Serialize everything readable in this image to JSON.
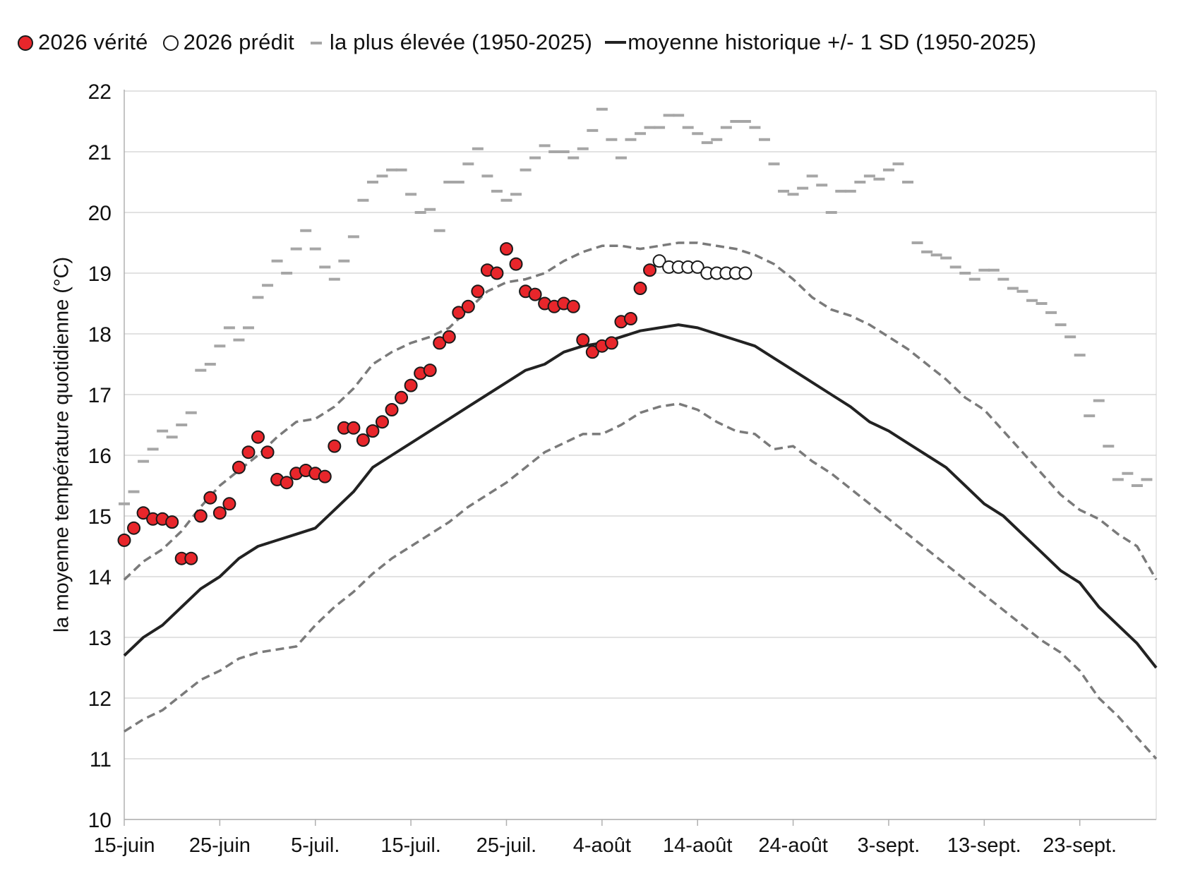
{
  "legend": {
    "truth": "2026 vérité",
    "predicted": "2026 prédit",
    "highest": "la plus élevée (1950-2025)",
    "mean": "moyenne historique +/- 1 SD (1950-2025)"
  },
  "colors": {
    "truth": "#e8262b",
    "predicted": "#ffffff",
    "highest": "#a6a6a6",
    "mean": "#222222",
    "sd": "#7a7a7a",
    "grid": "#d9d9d9"
  },
  "chart_data": {
    "type": "line",
    "ylabel": "la moyenne température quotidienne (°C)",
    "xlabel": "",
    "ylim": [
      10,
      22
    ],
    "yticks": [
      10,
      11,
      12,
      13,
      14,
      15,
      16,
      17,
      18,
      19,
      20,
      21,
      22
    ],
    "x_start": "15-juin",
    "xlim_days": [
      0,
      108
    ],
    "xticks": [
      {
        "day": 0,
        "label": "15-juin"
      },
      {
        "day": 10,
        "label": "25-juin"
      },
      {
        "day": 20,
        "label": "5-juil."
      },
      {
        "day": 30,
        "label": "15-juil."
      },
      {
        "day": 40,
        "label": "25-juil."
      },
      {
        "day": 50,
        "label": "4-août"
      },
      {
        "day": 60,
        "label": "14-août"
      },
      {
        "day": 70,
        "label": "24-août"
      },
      {
        "day": 80,
        "label": "3-sept."
      },
      {
        "day": 90,
        "label": "13-sept."
      },
      {
        "day": 100,
        "label": "23-sept."
      }
    ],
    "grid": true,
    "legend_position": "top",
    "series": [
      {
        "name": "2026 vérité",
        "kind": "scatter",
        "start_day": 0,
        "values": [
          14.6,
          14.8,
          15.05,
          14.95,
          14.95,
          14.9,
          14.3,
          14.3,
          15.0,
          15.3,
          15.05,
          15.2,
          15.8,
          16.05,
          16.3,
          16.05,
          15.6,
          15.55,
          15.7,
          15.75,
          15.7,
          15.65,
          16.15,
          16.45,
          16.45,
          16.25,
          16.4,
          16.55,
          16.75,
          16.95,
          17.15,
          17.35,
          17.4,
          17.85,
          17.95,
          18.35,
          18.45,
          18.7,
          19.05,
          19.0,
          19.4,
          19.15,
          18.7,
          18.65,
          18.5,
          18.45,
          18.5,
          18.45,
          17.9,
          17.7,
          17.8,
          17.85,
          18.2,
          18.25,
          18.75,
          19.05
        ]
      },
      {
        "name": "2026 prédit",
        "kind": "scatter",
        "start_day": 56,
        "values": [
          19.2,
          19.1,
          19.1,
          19.1,
          19.1,
          19.0,
          19.0,
          19.0,
          19.0,
          19.0
        ]
      },
      {
        "name": "la plus élevée (1950-2025)",
        "kind": "dash",
        "start_day": 0,
        "values": [
          15.2,
          15.4,
          15.9,
          16.1,
          16.4,
          16.3,
          16.5,
          16.7,
          17.4,
          17.5,
          17.8,
          18.1,
          17.9,
          18.1,
          18.6,
          18.8,
          19.2,
          19.0,
          19.4,
          19.7,
          19.4,
          19.1,
          18.9,
          19.2,
          19.6,
          20.2,
          20.5,
          20.6,
          20.7,
          20.7,
          20.3,
          20.0,
          20.05,
          19.7,
          20.5,
          20.5,
          20.8,
          21.05,
          20.6,
          20.35,
          20.2,
          20.3,
          20.7,
          20.9,
          21.1,
          21.0,
          21.0,
          20.9,
          21.05,
          21.35,
          21.7,
          21.2,
          20.9,
          21.2,
          21.3,
          21.4,
          21.4,
          21.6,
          21.6,
          21.4,
          21.3,
          21.15,
          21.2,
          21.4,
          21.5,
          21.5,
          21.4,
          21.2,
          20.8,
          20.35,
          20.3,
          20.4,
          20.6,
          20.45,
          20.0,
          20.35,
          20.35,
          20.5,
          20.6,
          20.55,
          20.7,
          20.8,
          20.5,
          19.5,
          19.35,
          19.3,
          19.25,
          19.1,
          19.0,
          18.9,
          19.05,
          19.05,
          18.9,
          18.75,
          18.7,
          18.55,
          18.5,
          18.35,
          18.15,
          17.95,
          17.65,
          16.65,
          16.9,
          16.15,
          15.6,
          15.7,
          15.5,
          15.6
        ]
      },
      {
        "name": "moyenne historique +/- 1 SD (1950-2025)",
        "kind": "line",
        "points": [
          [
            0,
            12.7
          ],
          [
            2,
            13.0
          ],
          [
            4,
            13.2
          ],
          [
            6,
            13.5
          ],
          [
            8,
            13.8
          ],
          [
            10,
            14.0
          ],
          [
            12,
            14.3
          ],
          [
            14,
            14.5
          ],
          [
            16,
            14.6
          ],
          [
            18,
            14.7
          ],
          [
            20,
            14.8
          ],
          [
            22,
            15.1
          ],
          [
            24,
            15.4
          ],
          [
            26,
            15.8
          ],
          [
            28,
            16.0
          ],
          [
            30,
            16.2
          ],
          [
            32,
            16.4
          ],
          [
            34,
            16.6
          ],
          [
            36,
            16.8
          ],
          [
            38,
            17.0
          ],
          [
            40,
            17.2
          ],
          [
            42,
            17.4
          ],
          [
            44,
            17.5
          ],
          [
            46,
            17.7
          ],
          [
            48,
            17.8
          ],
          [
            50,
            17.85
          ],
          [
            52,
            17.95
          ],
          [
            54,
            18.05
          ],
          [
            56,
            18.1
          ],
          [
            58,
            18.15
          ],
          [
            60,
            18.1
          ],
          [
            62,
            18.0
          ],
          [
            64,
            17.9
          ],
          [
            66,
            17.8
          ],
          [
            68,
            17.6
          ],
          [
            70,
            17.4
          ],
          [
            72,
            17.2
          ],
          [
            74,
            17.0
          ],
          [
            76,
            16.8
          ],
          [
            78,
            16.55
          ],
          [
            80,
            16.4
          ],
          [
            82,
            16.2
          ],
          [
            84,
            16.0
          ],
          [
            86,
            15.8
          ],
          [
            88,
            15.5
          ],
          [
            90,
            15.2
          ],
          [
            92,
            15.0
          ],
          [
            94,
            14.7
          ],
          [
            96,
            14.4
          ],
          [
            98,
            14.1
          ],
          [
            100,
            13.9
          ],
          [
            102,
            13.5
          ],
          [
            104,
            13.2
          ],
          [
            106,
            12.9
          ],
          [
            108,
            12.5
          ]
        ]
      },
      {
        "name": "moyenne historique + 1 SD",
        "kind": "dashed-line",
        "points": [
          [
            0,
            13.95
          ],
          [
            2,
            14.25
          ],
          [
            4,
            14.45
          ],
          [
            6,
            14.75
          ],
          [
            8,
            15.15
          ],
          [
            10,
            15.5
          ],
          [
            12,
            15.75
          ],
          [
            14,
            16.0
          ],
          [
            16,
            16.3
          ],
          [
            18,
            16.55
          ],
          [
            20,
            16.6
          ],
          [
            22,
            16.8
          ],
          [
            24,
            17.1
          ],
          [
            26,
            17.5
          ],
          [
            28,
            17.7
          ],
          [
            30,
            17.85
          ],
          [
            32,
            17.95
          ],
          [
            34,
            18.1
          ],
          [
            36,
            18.4
          ],
          [
            38,
            18.7
          ],
          [
            40,
            18.85
          ],
          [
            42,
            18.9
          ],
          [
            44,
            19.0
          ],
          [
            46,
            19.2
          ],
          [
            48,
            19.35
          ],
          [
            50,
            19.45
          ],
          [
            52,
            19.45
          ],
          [
            54,
            19.4
          ],
          [
            56,
            19.45
          ],
          [
            58,
            19.5
          ],
          [
            60,
            19.5
          ],
          [
            62,
            19.45
          ],
          [
            64,
            19.4
          ],
          [
            66,
            19.3
          ],
          [
            68,
            19.15
          ],
          [
            70,
            18.9
          ],
          [
            72,
            18.6
          ],
          [
            74,
            18.4
          ],
          [
            76,
            18.3
          ],
          [
            78,
            18.15
          ],
          [
            80,
            17.95
          ],
          [
            82,
            17.75
          ],
          [
            84,
            17.5
          ],
          [
            86,
            17.25
          ],
          [
            88,
            16.95
          ],
          [
            90,
            16.75
          ],
          [
            92,
            16.4
          ],
          [
            94,
            16.05
          ],
          [
            96,
            15.7
          ],
          [
            98,
            15.35
          ],
          [
            100,
            15.1
          ],
          [
            102,
            14.95
          ],
          [
            104,
            14.7
          ],
          [
            106,
            14.5
          ],
          [
            108,
            13.95
          ]
        ]
      },
      {
        "name": "moyenne historique - 1 SD",
        "kind": "dashed-line",
        "points": [
          [
            0,
            11.45
          ],
          [
            2,
            11.65
          ],
          [
            4,
            11.8
          ],
          [
            6,
            12.05
          ],
          [
            8,
            12.3
          ],
          [
            10,
            12.45
          ],
          [
            12,
            12.65
          ],
          [
            14,
            12.75
          ],
          [
            16,
            12.8
          ],
          [
            18,
            12.85
          ],
          [
            20,
            13.2
          ],
          [
            22,
            13.5
          ],
          [
            24,
            13.75
          ],
          [
            26,
            14.05
          ],
          [
            28,
            14.3
          ],
          [
            30,
            14.5
          ],
          [
            32,
            14.7
          ],
          [
            34,
            14.9
          ],
          [
            36,
            15.15
          ],
          [
            38,
            15.35
          ],
          [
            40,
            15.55
          ],
          [
            42,
            15.8
          ],
          [
            44,
            16.05
          ],
          [
            46,
            16.2
          ],
          [
            48,
            16.35
          ],
          [
            50,
            16.35
          ],
          [
            52,
            16.5
          ],
          [
            54,
            16.7
          ],
          [
            56,
            16.8
          ],
          [
            58,
            16.85
          ],
          [
            60,
            16.75
          ],
          [
            62,
            16.55
          ],
          [
            64,
            16.4
          ],
          [
            66,
            16.35
          ],
          [
            68,
            16.1
          ],
          [
            70,
            16.15
          ],
          [
            72,
            15.9
          ],
          [
            74,
            15.7
          ],
          [
            76,
            15.45
          ],
          [
            78,
            15.2
          ],
          [
            80,
            14.95
          ],
          [
            82,
            14.7
          ],
          [
            84,
            14.45
          ],
          [
            86,
            14.2
          ],
          [
            88,
            13.95
          ],
          [
            90,
            13.7
          ],
          [
            92,
            13.45
          ],
          [
            94,
            13.2
          ],
          [
            96,
            12.95
          ],
          [
            98,
            12.75
          ],
          [
            100,
            12.45
          ],
          [
            102,
            12.0
          ],
          [
            104,
            11.7
          ],
          [
            106,
            11.35
          ],
          [
            108,
            11.0
          ]
        ]
      }
    ]
  }
}
